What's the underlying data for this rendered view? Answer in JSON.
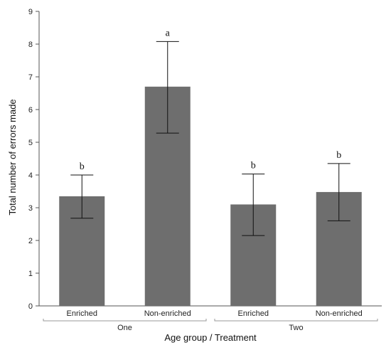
{
  "chart_data": {
    "type": "bar",
    "title": "",
    "xlabel": "Age group / Treatment",
    "ylabel": "Total number of errors made",
    "ylim": [
      0,
      9
    ],
    "yticks": [
      0,
      1,
      2,
      3,
      4,
      5,
      6,
      7,
      8,
      9
    ],
    "groups": [
      {
        "label": "One",
        "categories": [
          "Enriched",
          "Non-enriched"
        ]
      },
      {
        "label": "Two",
        "categories": [
          "Enriched",
          "Non-enriched"
        ]
      }
    ],
    "categories": [
      "Enriched",
      "Non-enriched",
      "Enriched",
      "Non-enriched"
    ],
    "values": [
      3.35,
      6.7,
      3.1,
      3.48
    ],
    "error_low": [
      2.68,
      5.28,
      2.15,
      2.6
    ],
    "error_high": [
      4.0,
      8.08,
      4.03,
      4.35
    ],
    "significance_labels": [
      "b",
      "a",
      "b",
      "b"
    ],
    "bar_color": "#6e6e6e",
    "grid": false,
    "legend": "none"
  }
}
